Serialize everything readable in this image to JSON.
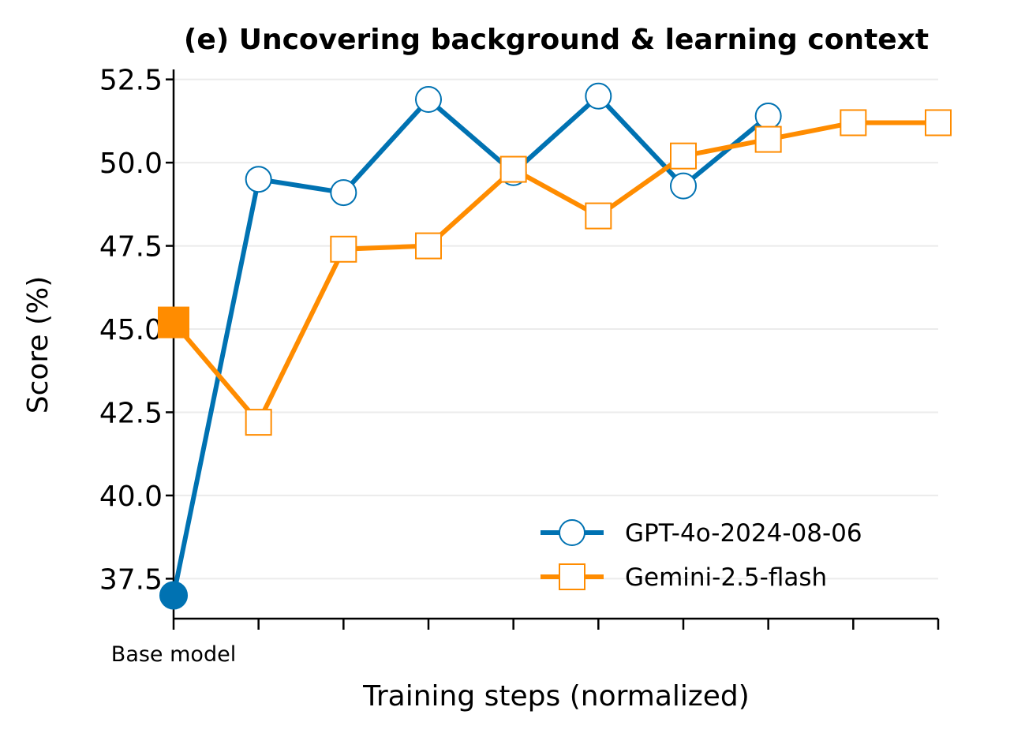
{
  "chart_data": {
    "type": "line",
    "title": "(e) Uncovering background & learning context",
    "xlabel": "Training steps (normalized)",
    "ylabel": "Score (%)",
    "x": [
      0,
      1,
      2,
      3,
      4,
      5,
      6,
      7,
      8,
      9
    ],
    "x_tick_labels": [
      "Base model",
      "",
      "",
      "",
      "",
      "",
      "",
      "",
      "",
      ""
    ],
    "ylim": [
      36.3,
      52.8
    ],
    "y_ticks": [
      37.5,
      40.0,
      42.5,
      45.0,
      47.5,
      50.0,
      52.5
    ],
    "y_tick_labels": [
      "37.5",
      "40.0",
      "42.5",
      "45.0",
      "47.5",
      "50.0",
      "52.5"
    ],
    "grid": "horizontal",
    "legend_position": "lower-right",
    "series": [
      {
        "name": "GPT-4o-2024-08-06",
        "color": "#0072b2",
        "marker": "circle",
        "x": [
          0,
          1,
          2,
          3,
          4,
          5,
          6,
          7
        ],
        "values": [
          37.0,
          49.5,
          49.1,
          51.9,
          49.7,
          52.0,
          49.3,
          51.4
        ]
      },
      {
        "name": "Gemini-2.5-flash",
        "color": "#ff8c00",
        "marker": "square",
        "x": [
          0,
          1,
          2,
          3,
          4,
          5,
          6,
          7,
          8,
          9
        ],
        "values": [
          45.2,
          42.2,
          47.4,
          47.5,
          49.8,
          48.4,
          50.2,
          50.7,
          51.2,
          51.2
        ]
      }
    ]
  }
}
